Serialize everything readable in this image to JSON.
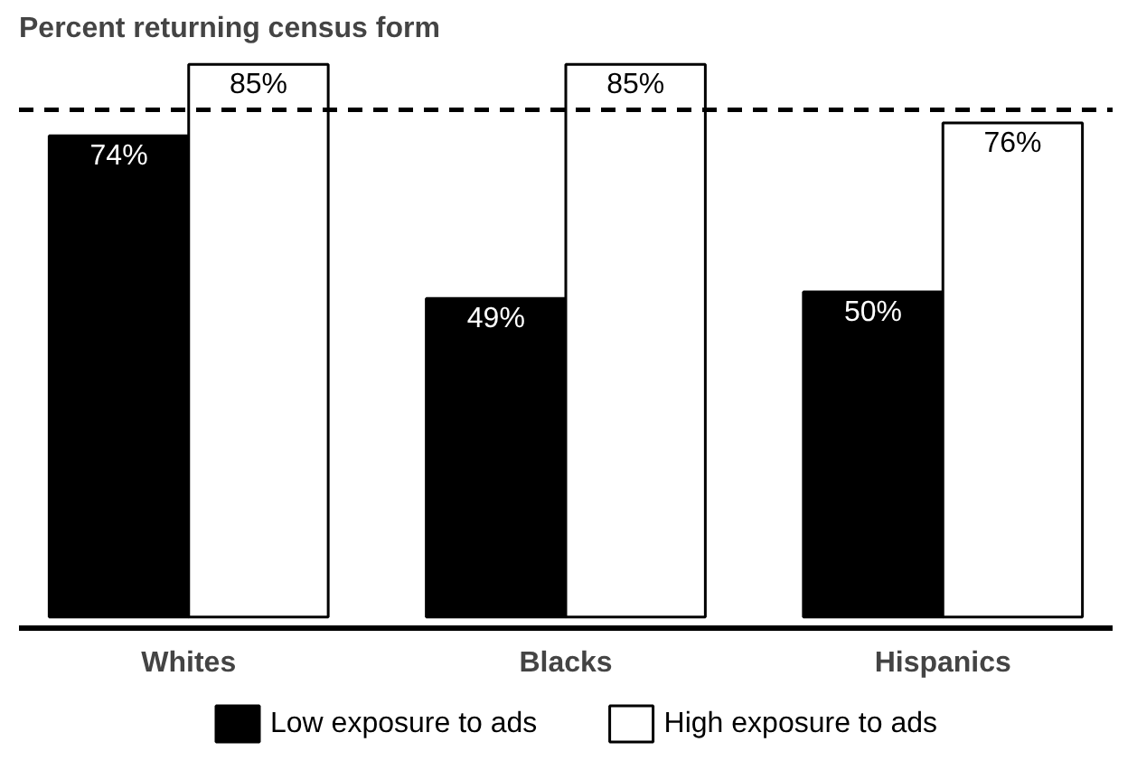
{
  "chart_data": {
    "type": "bar",
    "title": "Percent returning census form",
    "categories": [
      "Whites",
      "Blacks",
      "Hispanics"
    ],
    "series": [
      {
        "name": "Low exposure to ads",
        "color": "#000000",
        "values": [
          74,
          49,
          50
        ],
        "value_labels": [
          "74%",
          "49%",
          "50%"
        ]
      },
      {
        "name": "High exposure to ads",
        "color": "#ffffff",
        "values": [
          85,
          85,
          76
        ],
        "value_labels": [
          "85%",
          "85%",
          "76%"
        ]
      }
    ],
    "tick_labels": "x",
    "legend": "bottom",
    "ref_lines": [
      {
        "axis": "y",
        "value": 78,
        "label": null,
        "line_style": "dashed",
        "color": "#000000"
      }
    ]
  }
}
